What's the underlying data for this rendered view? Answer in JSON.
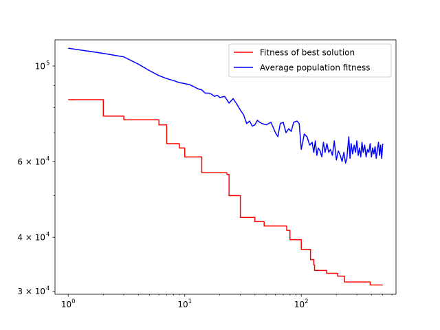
{
  "chart_data": {
    "type": "line",
    "title": "",
    "xlabel": "",
    "ylabel": "",
    "xscale": "log",
    "yscale": "log",
    "xlim": [
      0.77,
      650
    ],
    "ylim": [
      29500,
      115000
    ],
    "grid": false,
    "legend_position": "top-right",
    "x_major_ticks": [
      {
        "value": 1,
        "label": "10",
        "exp": "0"
      },
      {
        "value": 10,
        "label": "10",
        "exp": "1"
      },
      {
        "value": 100,
        "label": "10",
        "exp": "2"
      }
    ],
    "y_ticks": [
      {
        "value": 30000,
        "label": "3 × 10",
        "exp": "4"
      },
      {
        "value": 40000,
        "label": "4 × 10",
        "exp": "4"
      },
      {
        "value": 60000,
        "label": "6 × 10",
        "exp": "4"
      },
      {
        "value": 100000,
        "label": "10",
        "exp": "5"
      }
    ],
    "series": [
      {
        "name": "Fitness of best solution",
        "color": "#ff0000",
        "step": true,
        "points": [
          [
            1,
            83500
          ],
          [
            2,
            76500
          ],
          [
            3,
            75000
          ],
          [
            5,
            75000
          ],
          [
            6,
            73000
          ],
          [
            7,
            66000
          ],
          [
            9,
            64500
          ],
          [
            10,
            61500
          ],
          [
            13,
            61500
          ],
          [
            14,
            56500
          ],
          [
            21,
            56500
          ],
          [
            23,
            56000
          ],
          [
            24,
            50000
          ],
          [
            28,
            50000
          ],
          [
            30,
            44500
          ],
          [
            37,
            44500
          ],
          [
            40,
            43500
          ],
          [
            45,
            43500
          ],
          [
            48,
            42500
          ],
          [
            58,
            42500
          ],
          [
            68,
            42500
          ],
          [
            75,
            41500
          ],
          [
            80,
            39500
          ],
          [
            95,
            39500
          ],
          [
            100,
            37500
          ],
          [
            112,
            37500
          ],
          [
            120,
            35500
          ],
          [
            128,
            34500
          ],
          [
            130,
            33500
          ],
          [
            155,
            33500
          ],
          [
            165,
            33000
          ],
          [
            190,
            33000
          ],
          [
            205,
            32500
          ],
          [
            225,
            32500
          ],
          [
            235,
            31500
          ],
          [
            260,
            31500
          ],
          [
            300,
            31500
          ],
          [
            360,
            31500
          ],
          [
            390,
            31000
          ],
          [
            420,
            31000
          ],
          [
            500,
            31000
          ]
        ]
      },
      {
        "name": "Average population fitness",
        "color": "#0000ff",
        "step": false,
        "points": [
          [
            1,
            110000
          ],
          [
            2,
            107000
          ],
          [
            3,
            105000
          ],
          [
            4,
            101000
          ],
          [
            5,
            97500
          ],
          [
            6,
            95000
          ],
          [
            7,
            93500
          ],
          [
            8,
            92500
          ],
          [
            9,
            91500
          ],
          [
            10,
            91000
          ],
          [
            11,
            90500
          ],
          [
            12,
            89500
          ],
          [
            13,
            88500
          ],
          [
            14,
            88000
          ],
          [
            15,
            86500
          ],
          [
            16,
            86500
          ],
          [
            17,
            86000
          ],
          [
            18,
            85000
          ],
          [
            19,
            85500
          ],
          [
            20,
            84500
          ],
          [
            22,
            85000
          ],
          [
            24,
            82000
          ],
          [
            26,
            84000
          ],
          [
            28,
            81500
          ],
          [
            30,
            79000
          ],
          [
            32,
            77000
          ],
          [
            34,
            73500
          ],
          [
            36,
            74500
          ],
          [
            38,
            72500
          ],
          [
            40,
            73000
          ],
          [
            42,
            74800
          ],
          [
            44,
            74000
          ],
          [
            46,
            73500
          ],
          [
            50,
            73000
          ],
          [
            55,
            74000
          ],
          [
            60,
            70000
          ],
          [
            63,
            68500
          ],
          [
            66,
            73500
          ],
          [
            70,
            74000
          ],
          [
            74,
            70000
          ],
          [
            78,
            71500
          ],
          [
            82,
            70500
          ],
          [
            86,
            74000
          ],
          [
            92,
            74500
          ],
          [
            96,
            73500
          ],
          [
            100,
            64000
          ],
          [
            106,
            69500
          ],
          [
            112,
            68500
          ],
          [
            118,
            65500
          ],
          [
            124,
            66500
          ],
          [
            128,
            63000
          ],
          [
            132,
            67000
          ],
          [
            136,
            62000
          ],
          [
            140,
            64500
          ],
          [
            145,
            63500
          ],
          [
            150,
            61500
          ],
          [
            155,
            66500
          ],
          [
            160,
            63000
          ],
          [
            166,
            66000
          ],
          [
            172,
            63000
          ],
          [
            178,
            64000
          ],
          [
            185,
            62000
          ],
          [
            192,
            67000
          ],
          [
            200,
            60500
          ],
          [
            208,
            63500
          ],
          [
            216,
            62000
          ],
          [
            224,
            60000
          ],
          [
            232,
            63000
          ],
          [
            240,
            59500
          ],
          [
            246,
            61000
          ],
          [
            252,
            65500
          ],
          [
            256,
            68500
          ],
          [
            262,
            61000
          ],
          [
            268,
            66000
          ],
          [
            276,
            62500
          ],
          [
            284,
            65500
          ],
          [
            292,
            63000
          ],
          [
            300,
            67000
          ],
          [
            308,
            62000
          ],
          [
            316,
            64500
          ],
          [
            324,
            61500
          ],
          [
            332,
            66500
          ],
          [
            340,
            63000
          ],
          [
            350,
            65500
          ],
          [
            360,
            61500
          ],
          [
            370,
            64000
          ],
          [
            380,
            63000
          ],
          [
            390,
            66000
          ],
          [
            400,
            61500
          ],
          [
            410,
            64500
          ],
          [
            420,
            62500
          ],
          [
            430,
            65000
          ],
          [
            440,
            61000
          ],
          [
            450,
            64000
          ],
          [
            460,
            66500
          ],
          [
            470,
            62000
          ],
          [
            480,
            65500
          ],
          [
            490,
            61000
          ],
          [
            500,
            66000
          ]
        ]
      }
    ]
  }
}
